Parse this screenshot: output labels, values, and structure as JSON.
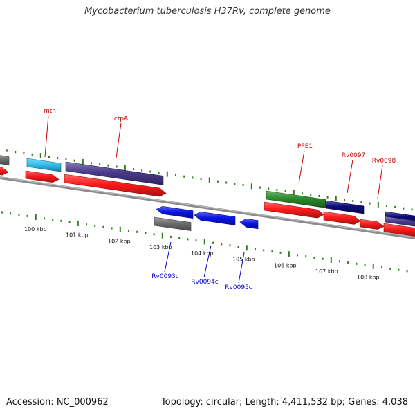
{
  "title": "Mycobacterium tuberculosis H37Rv, complete genome",
  "footer": {
    "accession": "Accession: NC_000962",
    "summary": "Topology: circular; Length: 4,411,532 bp; Genes: 4,038"
  },
  "colors": {
    "backbone": "#8c8c8c",
    "tick": "#2e7d20",
    "forward_label": "#cc0000",
    "reverse_label": "#0000cc",
    "cds_red": "#ff1a1a",
    "blue": "#0a14e6",
    "navy": "#0c0c7a",
    "purple": "#4a3a8c",
    "cyan": "#33c2f0",
    "green": "#2a8a2a",
    "grey": "#6e6e6e"
  },
  "scale": {
    "labels": [
      "100 kbp",
      "101 kbp",
      "102 kbp",
      "103 kbp",
      "104 kbp",
      "105 kbp",
      "106 kbp",
      "107 kbp",
      "108 kbp"
    ]
  },
  "labels": {
    "forward": [
      "mtn",
      "ctpA",
      "PPE1",
      "Rv0097",
      "Rv0098"
    ],
    "reverse": [
      "Rv0093c",
      "Rv0094c",
      "Rv0095c"
    ]
  }
}
